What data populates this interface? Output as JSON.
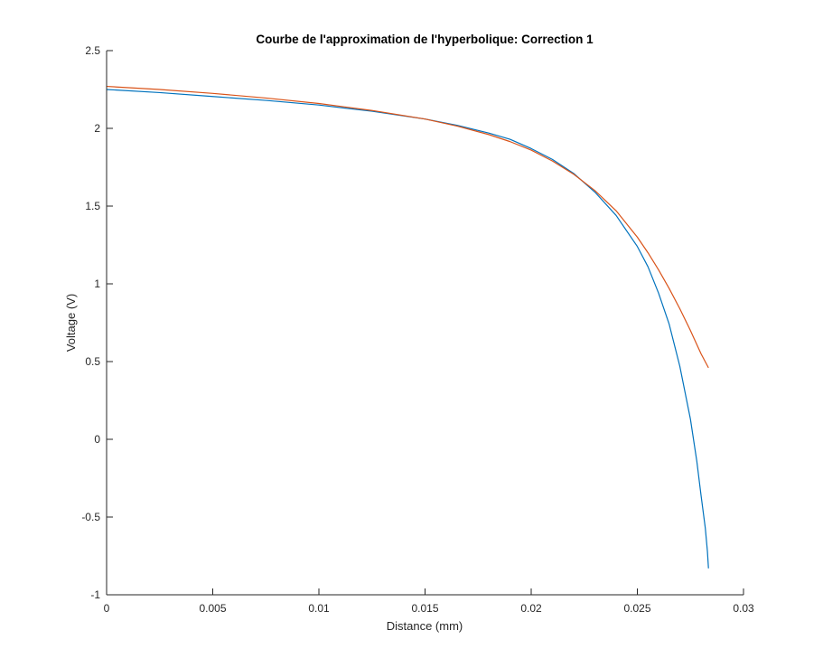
{
  "chart_data": {
    "type": "line",
    "title": "Courbe de l'approximation de l'hyperbolique: Correction 1",
    "xlabel": "Distance (mm)",
    "ylabel": "Voltage (V)",
    "xlim": [
      0,
      0.03
    ],
    "ylim": [
      -1,
      2.5
    ],
    "xticks": [
      0,
      0.005,
      0.01,
      0.015,
      0.02,
      0.025,
      0.03
    ],
    "xtick_labels": [
      "0",
      "0.005",
      "0.01",
      "0.015",
      "0.02",
      "0.025",
      "0.03"
    ],
    "yticks": [
      -1,
      -0.5,
      0,
      0.5,
      1,
      1.5,
      2,
      2.5
    ],
    "ytick_labels": [
      "-1",
      "-0.5",
      "0",
      "0.5",
      "1",
      "1.5",
      "2",
      "2.5"
    ],
    "grid": false,
    "legend": "none",
    "series": [
      {
        "color": "#0072BD",
        "x": [
          0,
          0.0025,
          0.005,
          0.0075,
          0.01,
          0.0125,
          0.015,
          0.0165,
          0.018,
          0.019,
          0.02,
          0.021,
          0.022,
          0.023,
          0.024,
          0.025,
          0.0255,
          0.026,
          0.0265,
          0.027,
          0.0275,
          0.0278,
          0.028,
          0.0282,
          0.0283,
          0.02835
        ],
        "y": [
          2.25,
          2.23,
          2.205,
          2.18,
          2.15,
          2.11,
          2.06,
          2.02,
          1.97,
          1.93,
          1.87,
          1.8,
          1.71,
          1.59,
          1.44,
          1.24,
          1.11,
          0.94,
          0.74,
          0.47,
          0.13,
          -0.14,
          -0.36,
          -0.57,
          -0.72,
          -0.83
        ]
      },
      {
        "color": "#D95319",
        "x": [
          0,
          0.0025,
          0.005,
          0.0075,
          0.01,
          0.0125,
          0.015,
          0.0165,
          0.018,
          0.019,
          0.02,
          0.021,
          0.022,
          0.023,
          0.024,
          0.025,
          0.0255,
          0.026,
          0.0265,
          0.027,
          0.0275,
          0.028,
          0.02835
        ],
        "y": [
          2.27,
          2.25,
          2.225,
          2.195,
          2.16,
          2.115,
          2.06,
          2.015,
          1.96,
          1.915,
          1.86,
          1.79,
          1.705,
          1.6,
          1.47,
          1.3,
          1.2,
          1.09,
          0.97,
          0.84,
          0.7,
          0.55,
          0.46
        ]
      }
    ]
  }
}
